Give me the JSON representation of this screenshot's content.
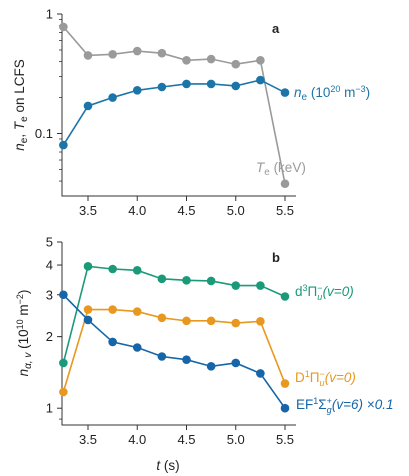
{
  "chart_data": [
    {
      "panel": "a",
      "type": "line",
      "yscale": "log",
      "ylim": [
        0.03,
        1
      ],
      "xlim": [
        3.15,
        5.6
      ],
      "x": [
        3.25,
        3.5,
        3.75,
        4.0,
        4.25,
        4.5,
        4.75,
        5.0,
        5.25,
        5.5
      ],
      "ylabel": "n_e, T_e on LCFS",
      "y_ticks": [
        {
          "v": 1,
          "t": "1"
        },
        {
          "v": 0.1,
          "t": "0.1"
        }
      ],
      "x_ticks": [
        {
          "v": 3.5,
          "t": "3.5"
        },
        {
          "v": 4.0,
          "t": "4.0"
        },
        {
          "v": 4.5,
          "t": "4.5"
        },
        {
          "v": 5.0,
          "t": "5.0"
        },
        {
          "v": 5.5,
          "t": "5.5"
        }
      ],
      "series": [
        {
          "key": "Te",
          "label": "T_e (keV)",
          "color": "#9a9a9a",
          "values": [
            0.78,
            0.45,
            0.46,
            0.49,
            0.47,
            0.41,
            0.42,
            0.38,
            0.41,
            0.038
          ]
        },
        {
          "key": "ne",
          "label": "n_e (10^20 m^-3)",
          "color": "#1c75a8",
          "values": [
            0.08,
            0.17,
            0.2,
            0.23,
            0.245,
            0.26,
            0.26,
            0.25,
            0.28,
            0.22
          ]
        }
      ]
    },
    {
      "panel": "b",
      "type": "line",
      "yscale": "log",
      "ylim": [
        0.85,
        5
      ],
      "xlim": [
        3.15,
        5.6
      ],
      "x": [
        3.25,
        3.5,
        3.75,
        4.0,
        4.25,
        4.5,
        4.75,
        5.0,
        5.25,
        5.5
      ],
      "xlabel": "t (s)",
      "ylabel": "n_α,v (10^10 m^-2)",
      "y_ticks": [
        {
          "v": 5,
          "t": "5"
        },
        {
          "v": 4,
          "t": "4"
        },
        {
          "v": 3,
          "t": "3"
        },
        {
          "v": 2,
          "t": "2"
        },
        {
          "v": 1,
          "t": "1"
        }
      ],
      "x_ticks": [
        {
          "v": 3.5,
          "t": "3.5"
        },
        {
          "v": 4.0,
          "t": "4.0"
        },
        {
          "v": 4.5,
          "t": "4.5"
        },
        {
          "v": 5.0,
          "t": "5.0"
        },
        {
          "v": 5.5,
          "t": "5.5"
        }
      ],
      "series": [
        {
          "key": "d3",
          "label": "d³Π_u⁻(v=0)",
          "color": "#1a9a78",
          "values": [
            1.55,
            3.95,
            3.85,
            3.8,
            3.5,
            3.45,
            3.43,
            3.28,
            3.28,
            2.95
          ]
        },
        {
          "key": "D1",
          "label": "D¹Π_u⁻(v=0)",
          "color": "#e8981f",
          "values": [
            1.17,
            2.6,
            2.6,
            2.55,
            2.4,
            2.33,
            2.33,
            2.28,
            2.32,
            1.27
          ]
        },
        {
          "key": "EF",
          "label": "EF¹Σ_g⁺(v=6) ×0.1",
          "color": "#1565a8",
          "values": [
            3.0,
            2.35,
            1.9,
            1.8,
            1.65,
            1.6,
            1.5,
            1.55,
            1.4,
            1.0
          ]
        }
      ]
    }
  ],
  "labels": {
    "panel_a": "a",
    "panel_b": "b",
    "ylabel_a_ne": "n",
    "ylabel_a_ne_sub": "e",
    "ylabel_a_sep": ", ",
    "ylabel_a_Te": "T",
    "ylabel_a_Te_sub": "e",
    "ylabel_a_rest": " on LCFS",
    "ylabel_b_n": "n",
    "ylabel_b_sub": "α, v",
    "ylabel_b_unit_open": " (10",
    "ylabel_b_unit_exp": "10",
    "ylabel_b_unit_mid": " m",
    "ylabel_b_unit_exp2": "−2",
    "ylabel_b_unit_close": ")",
    "xlabel_t": "t",
    "xlabel_unit": " (s)",
    "leg_ne_n": "n",
    "leg_ne_sub": "e",
    "leg_ne_unit": " (10",
    "leg_ne_exp": "20",
    "leg_ne_mid": " m",
    "leg_ne_exp2": "−3",
    "leg_ne_close": ")",
    "leg_Te_T": "T",
    "leg_Te_sub": "e",
    "leg_Te_unit": " (keV)",
    "leg_d3_main": "d",
    "leg_d3_sup": "3",
    "leg_d3_pi": "Π",
    "leg_d3_sub": "u",
    "leg_d3_minus": "−",
    "leg_d3_v": "(v=0)",
    "leg_D1_main": "D",
    "leg_D1_sup": "1",
    "leg_D1_pi": "Π",
    "leg_D1_sub": "u",
    "leg_D1_minus": "−",
    "leg_D1_v": "(v=0)",
    "leg_EF_main": "EF",
    "leg_EF_sup": "1",
    "leg_EF_sig": "Σ",
    "leg_EF_sub": "g",
    "leg_EF_plus": "+",
    "leg_EF_v": "(v=6) ×0.1"
  }
}
